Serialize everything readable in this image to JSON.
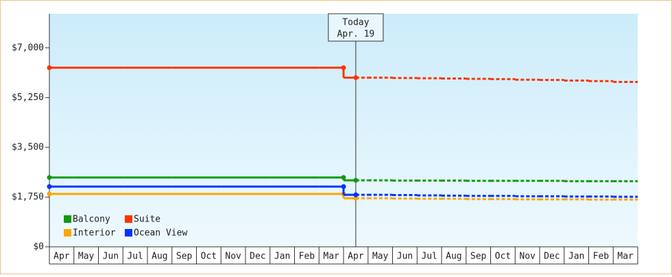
{
  "chart_data": {
    "type": "line",
    "categories": [
      "Apr",
      "May",
      "Jun",
      "Jul",
      "Aug",
      "Sep",
      "Oct",
      "Nov",
      "Dec",
      "Jan",
      "Feb",
      "Mar",
      "Apr",
      "May",
      "Jun",
      "Jul",
      "Aug",
      "Sep",
      "Oct",
      "Nov",
      "Dec",
      "Jan",
      "Feb",
      "Mar"
    ],
    "today_label": "Today",
    "today_date": "Apr. 19",
    "ylim": [
      0,
      8200
    ],
    "yticks": [
      {
        "value": 0,
        "label": "$0"
      },
      {
        "value": 1750,
        "label": "$1,750"
      },
      {
        "value": 3500,
        "label": "$3,500"
      },
      {
        "value": 5250,
        "label": "$5,250"
      },
      {
        "value": 7000,
        "label": "$7,000"
      }
    ],
    "series": [
      {
        "name": "Balcony",
        "color": "#119911",
        "values": [
          2440,
          2440,
          2440,
          2440,
          2440,
          2440,
          2440,
          2440,
          2440,
          2440,
          2440,
          2440,
          2340,
          null,
          null,
          null,
          null,
          null,
          null,
          null,
          null,
          null,
          null,
          null
        ],
        "forecast_values": [
          null,
          null,
          null,
          null,
          null,
          null,
          null,
          null,
          null,
          null,
          null,
          null,
          null,
          2340,
          2330,
          2330,
          2330,
          2320,
          2320,
          2320,
          2320,
          2310,
          2310,
          2310
        ]
      },
      {
        "name": "Suite",
        "color": "#ff3300",
        "values": [
          6300,
          6300,
          6300,
          6300,
          6300,
          6300,
          6300,
          6300,
          6300,
          6300,
          6300,
          6300,
          5950,
          null,
          null,
          null,
          null,
          null,
          null,
          null,
          null,
          null,
          null,
          null
        ],
        "forecast_values": [
          null,
          null,
          null,
          null,
          null,
          null,
          null,
          null,
          null,
          null,
          null,
          null,
          null,
          5950,
          5940,
          5930,
          5920,
          5910,
          5900,
          5880,
          5870,
          5850,
          5830,
          5800
        ]
      },
      {
        "name": "Interior",
        "color": "#ffa500",
        "values": [
          1860,
          1860,
          1860,
          1860,
          1860,
          1860,
          1860,
          1860,
          1860,
          1860,
          1860,
          1860,
          1710,
          null,
          null,
          null,
          null,
          null,
          null,
          null,
          null,
          null,
          null,
          null
        ],
        "forecast_values": [
          null,
          null,
          null,
          null,
          null,
          null,
          null,
          null,
          null,
          null,
          null,
          null,
          null,
          1710,
          1700,
          1690,
          1690,
          1680,
          1680,
          1670,
          1670,
          1670,
          1660,
          1660
        ]
      },
      {
        "name": "Ocean View",
        "color": "#0033ff",
        "values": [
          2120,
          2120,
          2120,
          2120,
          2120,
          2120,
          2120,
          2120,
          2120,
          2120,
          2120,
          2120,
          1830,
          null,
          null,
          null,
          null,
          null,
          null,
          null,
          null,
          null,
          null,
          null
        ],
        "forecast_values": [
          null,
          null,
          null,
          null,
          null,
          null,
          null,
          null,
          null,
          null,
          null,
          null,
          null,
          1830,
          1820,
          1810,
          1800,
          1790,
          1790,
          1780,
          1780,
          1770,
          1770,
          1760
        ]
      }
    ]
  }
}
